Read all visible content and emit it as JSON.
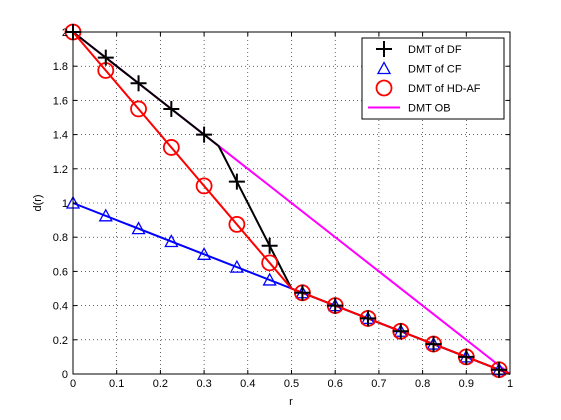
{
  "chart_data": {
    "type": "line",
    "title": "",
    "xlabel": "r",
    "ylabel": "d(r)",
    "xlim": [
      0,
      1
    ],
    "ylim": [
      0,
      2
    ],
    "xticks": [
      0,
      0.1,
      0.2,
      0.3,
      0.4,
      0.5,
      0.6,
      0.7,
      0.8,
      0.9,
      1
    ],
    "xtick_labels": [
      "0",
      "0.1",
      "0.2",
      "0.3",
      "0.4",
      "0.5",
      "0.6",
      "0.7",
      "0.8",
      "0.9",
      "1"
    ],
    "yticks": [
      0,
      0.2,
      0.4,
      0.6,
      0.8,
      1,
      1.2,
      1.4,
      1.6,
      1.8,
      2
    ],
    "ytick_labels": [
      "0",
      "0.2",
      "0.4",
      "0.6",
      "0.8",
      "1",
      "1.2",
      "1.4",
      "1.6",
      "1.8",
      "2"
    ],
    "grid": true,
    "legend_position": "top-right",
    "series": [
      {
        "name": "DMT of DF",
        "color": "#000000",
        "marker": "plus",
        "line": [
          [
            0,
            2
          ],
          [
            0.3333,
            1.3333
          ],
          [
            0.5,
            0.5
          ],
          [
            1,
            0
          ]
        ],
        "points": [
          [
            0,
            2
          ],
          [
            0.075,
            1.85
          ],
          [
            0.15,
            1.7
          ],
          [
            0.225,
            1.55
          ],
          [
            0.3,
            1.4
          ],
          [
            0.375,
            1.125
          ],
          [
            0.45,
            0.75
          ],
          [
            0.525,
            0.475
          ],
          [
            0.6,
            0.4
          ],
          [
            0.675,
            0.325
          ],
          [
            0.75,
            0.25
          ],
          [
            0.825,
            0.175
          ],
          [
            0.9,
            0.1
          ],
          [
            0.975,
            0.025
          ]
        ]
      },
      {
        "name": "DMT of CF",
        "color": "#0000ff",
        "marker": "triangle",
        "line": [
          [
            0,
            1
          ],
          [
            0.5,
            0.5
          ],
          [
            1,
            0
          ]
        ],
        "points": [
          [
            0,
            1
          ],
          [
            0.075,
            0.925
          ],
          [
            0.15,
            0.85
          ],
          [
            0.225,
            0.775
          ],
          [
            0.3,
            0.7
          ],
          [
            0.375,
            0.625
          ],
          [
            0.45,
            0.55
          ],
          [
            0.525,
            0.475
          ],
          [
            0.6,
            0.4
          ],
          [
            0.675,
            0.325
          ],
          [
            0.75,
            0.25
          ],
          [
            0.825,
            0.175
          ],
          [
            0.9,
            0.1
          ],
          [
            0.975,
            0.025
          ]
        ]
      },
      {
        "name": "DMT of HD-AF",
        "color": "#ff0000",
        "marker": "circle",
        "line": [
          [
            0,
            2
          ],
          [
            0.5,
            0.5
          ],
          [
            1,
            0
          ]
        ],
        "points": [
          [
            0,
            2
          ],
          [
            0.075,
            1.775
          ],
          [
            0.15,
            1.55
          ],
          [
            0.225,
            1.325
          ],
          [
            0.3,
            1.1
          ],
          [
            0.375,
            0.875
          ],
          [
            0.45,
            0.65
          ],
          [
            0.525,
            0.475
          ],
          [
            0.6,
            0.4
          ],
          [
            0.675,
            0.325
          ],
          [
            0.75,
            0.25
          ],
          [
            0.825,
            0.175
          ],
          [
            0.9,
            0.1
          ],
          [
            0.975,
            0.025
          ]
        ]
      },
      {
        "name": "DMT OB",
        "color": "#ff00ff",
        "marker": "none",
        "line": [
          [
            0,
            2
          ],
          [
            1,
            0
          ]
        ],
        "points": []
      }
    ]
  }
}
